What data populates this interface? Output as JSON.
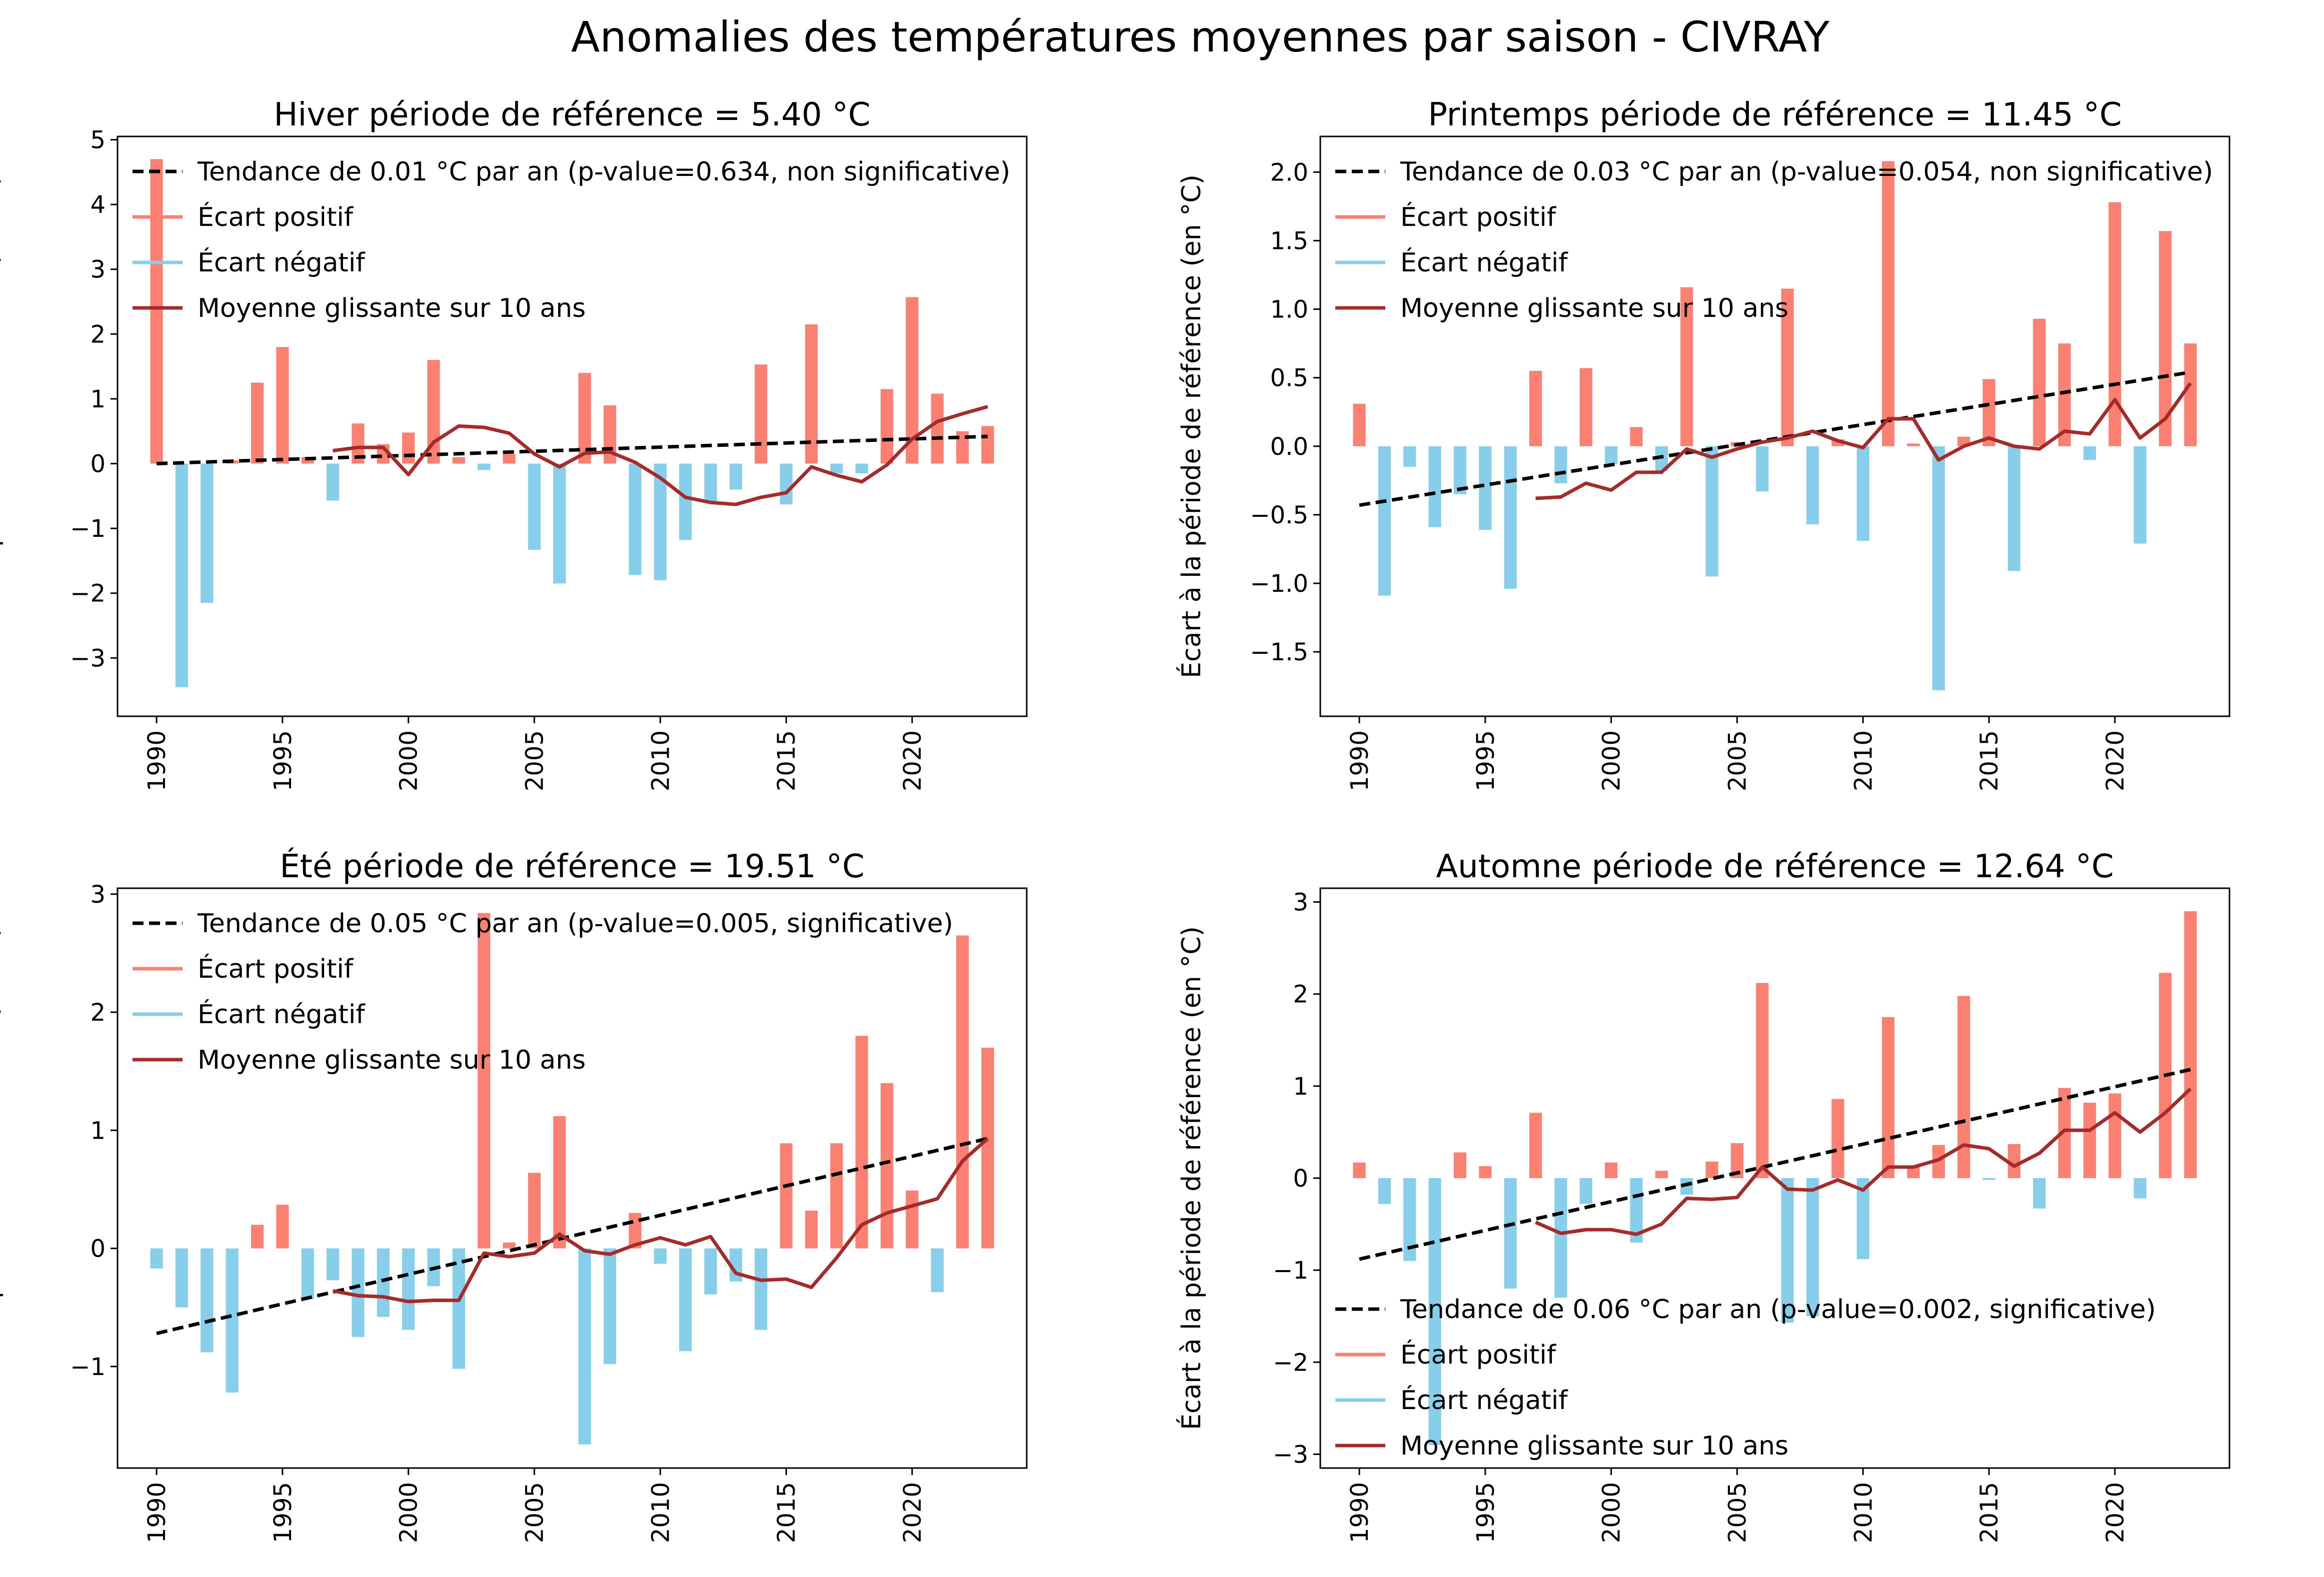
{
  "suptitle": "Anomalies des températures moyennes par saison - CIVRAY",
  "colors": {
    "positive": "#fa8072",
    "negative": "#87ceeb",
    "rolling": "#a52a2a",
    "trend": "#000000"
  },
  "chart_data": [
    {
      "type": "bar",
      "title": "Hiver période de référence = 5.40 °C",
      "ylabel": "Écart à la période de référence (en °C)",
      "xlabel": "",
      "x_ticks": [
        1990,
        1995,
        2000,
        2005,
        2010,
        2015,
        2020
      ],
      "y_ticks": [
        -3,
        -2,
        -1,
        0,
        1,
        2,
        3,
        4,
        5
      ],
      "y_tick_labels": [
        "−3",
        "−2",
        "−1",
        "0",
        "1",
        "2",
        "3",
        "4",
        "5"
      ],
      "ylim": [
        -3.9,
        5.05
      ],
      "legend_position": "upper-left",
      "legend": {
        "trend": "Tendance de 0.01 °C par an (p-value=0.634, non significative)",
        "positive": "Écart positif",
        "negative": "Écart négatif",
        "rolling": "Moyenne glissante sur 10 ans"
      },
      "x": [
        1990,
        1991,
        1992,
        1993,
        1994,
        1995,
        1996,
        1997,
        1998,
        1999,
        2000,
        2001,
        2002,
        2003,
        2004,
        2005,
        2006,
        2007,
        2008,
        2009,
        2010,
        2011,
        2012,
        2013,
        2014,
        2015,
        2016,
        2017,
        2018,
        2019,
        2020,
        2021,
        2022,
        2023
      ],
      "values": [
        4.7,
        -3.45,
        -2.15,
        0.05,
        1.25,
        1.8,
        0.1,
        -0.57,
        0.62,
        0.3,
        0.48,
        1.6,
        0.1,
        -0.1,
        0.15,
        -1.33,
        -1.85,
        1.4,
        0.9,
        -1.72,
        -1.8,
        -1.18,
        -0.6,
        -0.4,
        1.53,
        -0.63,
        2.15,
        -0.15,
        -0.15,
        1.15,
        2.57,
        1.08,
        0.5,
        0.58
      ],
      "rolling_mean": {
        "x": [
          1997,
          1998,
          1999,
          2000,
          2001,
          2002,
          2003,
          2004,
          2005,
          2006,
          2007,
          2008,
          2009,
          2010,
          2011,
          2012,
          2013,
          2014,
          2015,
          2016,
          2017,
          2018,
          2019,
          2020,
          2021,
          2022,
          2023
        ],
        "values": [
          0.2,
          0.25,
          0.25,
          -0.17,
          0.33,
          0.58,
          0.56,
          0.47,
          0.15,
          -0.05,
          0.16,
          0.18,
          0.02,
          -0.22,
          -0.52,
          -0.6,
          -0.63,
          -0.52,
          -0.45,
          -0.05,
          -0.18,
          -0.28,
          -0.02,
          0.38,
          0.65,
          0.77,
          0.88
        ]
      },
      "trend": {
        "x": [
          1990,
          2023
        ],
        "values": [
          0.0,
          0.42
        ]
      }
    },
    {
      "type": "bar",
      "title": "Printemps période de référence = 11.45 °C",
      "ylabel": "Écart à la période de référence (en °C)",
      "xlabel": "",
      "x_ticks": [
        1990,
        1995,
        2000,
        2005,
        2010,
        2015,
        2020
      ],
      "y_ticks": [
        -1.5,
        -1.0,
        -0.5,
        0.0,
        0.5,
        1.0,
        1.5,
        2.0
      ],
      "y_tick_labels": [
        "−1.5",
        "−1.0",
        "−0.5",
        "0.0",
        "0.5",
        "1.0",
        "1.5",
        "2.0"
      ],
      "ylim": [
        -1.97,
        2.26
      ],
      "legend_position": "upper-left",
      "legend": {
        "trend": "Tendance de 0.03 °C par an (p-value=0.054, non significative)",
        "positive": "Écart positif",
        "negative": "Écart négatif",
        "rolling": "Moyenne glissante sur 10 ans"
      },
      "x": [
        1990,
        1991,
        1992,
        1993,
        1994,
        1995,
        1996,
        1997,
        1998,
        1999,
        2000,
        2001,
        2002,
        2003,
        2004,
        2005,
        2006,
        2007,
        2008,
        2009,
        2010,
        2011,
        2012,
        2013,
        2014,
        2015,
        2016,
        2017,
        2018,
        2019,
        2020,
        2021,
        2022,
        2023
      ],
      "values": [
        0.31,
        -1.09,
        -0.15,
        -0.59,
        -0.35,
        -0.61,
        -1.04,
        0.55,
        -0.27,
        0.57,
        -0.13,
        0.14,
        -0.18,
        1.16,
        -0.95,
        0.03,
        -0.33,
        1.15,
        -0.57,
        0.05,
        -0.69,
        2.08,
        0.02,
        -1.78,
        0.07,
        0.49,
        -0.91,
        0.93,
        0.75,
        -0.1,
        1.78,
        -0.71,
        1.57,
        0.75
      ],
      "rolling_mean": {
        "x": [
          1997,
          1998,
          1999,
          2000,
          2001,
          2002,
          2003,
          2004,
          2005,
          2006,
          2007,
          2008,
          2009,
          2010,
          2011,
          2012,
          2013,
          2014,
          2015,
          2016,
          2017,
          2018,
          2019,
          2020,
          2021,
          2022,
          2023
        ],
        "values": [
          -0.38,
          -0.37,
          -0.27,
          -0.32,
          -0.19,
          -0.19,
          -0.02,
          -0.08,
          -0.02,
          0.03,
          0.06,
          0.11,
          0.04,
          -0.01,
          0.2,
          0.2,
          -0.1,
          0.0,
          0.06,
          0.0,
          -0.02,
          0.11,
          0.09,
          0.34,
          0.06,
          0.2,
          0.46
        ]
      },
      "trend": {
        "x": [
          1990,
          2023
        ],
        "values": [
          -0.43,
          0.54
        ]
      }
    },
    {
      "type": "bar",
      "title": "Été période de référence = 19.51 °C",
      "ylabel": "Écart à la période de référence (en °C)",
      "xlabel": "",
      "x_ticks": [
        1990,
        1995,
        2000,
        2005,
        2010,
        2015,
        2020
      ],
      "y_ticks": [
        -1,
        0,
        1,
        2,
        3
      ],
      "y_tick_labels": [
        "−1",
        "0",
        "1",
        "2",
        "3"
      ],
      "ylim": [
        -1.86,
        3.05
      ],
      "legend_position": "upper-left",
      "legend": {
        "trend": "Tendance de 0.05 °C par an (p-value=0.005, significative)",
        "positive": "Écart positif",
        "negative": "Écart négatif",
        "rolling": "Moyenne glissante sur 10 ans"
      },
      "x": [
        1990,
        1991,
        1992,
        1993,
        1994,
        1995,
        1996,
        1997,
        1998,
        1999,
        2000,
        2001,
        2002,
        2003,
        2004,
        2005,
        2006,
        2007,
        2008,
        2009,
        2010,
        2011,
        2012,
        2013,
        2014,
        2015,
        2016,
        2017,
        2018,
        2019,
        2020,
        2021,
        2022,
        2023
      ],
      "values": [
        -0.17,
        -0.5,
        -0.88,
        -1.22,
        0.2,
        0.37,
        -0.43,
        -0.27,
        -0.75,
        -0.58,
        -0.69,
        -0.32,
        -1.02,
        2.84,
        0.05,
        0.64,
        1.12,
        -1.66,
        -0.98,
        0.3,
        -0.13,
        -0.87,
        -0.39,
        -0.28,
        -0.69,
        0.89,
        0.32,
        0.89,
        1.8,
        1.4,
        0.49,
        -0.37,
        2.65,
        1.7
      ],
      "rolling_mean": {
        "x": [
          1997,
          1998,
          1999,
          2000,
          2001,
          2002,
          2003,
          2004,
          2005,
          2006,
          2007,
          2008,
          2009,
          2010,
          2011,
          2012,
          2013,
          2014,
          2015,
          2016,
          2017,
          2018,
          2019,
          2020,
          2021,
          2022,
          2023
        ],
        "values": [
          -0.36,
          -0.4,
          -0.41,
          -0.45,
          -0.44,
          -0.44,
          -0.04,
          -0.07,
          -0.04,
          0.12,
          -0.02,
          -0.05,
          0.03,
          0.09,
          0.03,
          0.1,
          -0.21,
          -0.27,
          -0.26,
          -0.33,
          -0.08,
          0.2,
          0.3,
          0.36,
          0.42,
          0.74,
          0.93
        ]
      },
      "trend": {
        "x": [
          1990,
          2023
        ],
        "values": [
          -0.72,
          0.93
        ]
      }
    },
    {
      "type": "bar",
      "title": "Automne période de référence = 12.64 °C",
      "ylabel": "Écart à la période de référence (en °C)",
      "xlabel": "",
      "x_ticks": [
        1990,
        1995,
        2000,
        2005,
        2010,
        2015,
        2020
      ],
      "y_ticks": [
        -3,
        -2,
        -1,
        0,
        1,
        2,
        3
      ],
      "y_tick_labels": [
        "−3",
        "−2",
        "−1",
        "0",
        "1",
        "2",
        "3"
      ],
      "ylim": [
        -3.15,
        3.15
      ],
      "legend_position": "lower-left",
      "legend": {
        "trend": "Tendance de 0.06 °C par an (p-value=0.002, significative)",
        "positive": "Écart positif",
        "negative": "Écart négatif",
        "rolling": "Moyenne glissante sur 10 ans"
      },
      "x": [
        1990,
        1991,
        1992,
        1993,
        1994,
        1995,
        1996,
        1997,
        1998,
        1999,
        2000,
        2001,
        2002,
        2003,
        2004,
        2005,
        2006,
        2007,
        2008,
        2009,
        2010,
        2011,
        2012,
        2013,
        2014,
        2015,
        2016,
        2017,
        2018,
        2019,
        2020,
        2021,
        2022,
        2023
      ],
      "values": [
        0.17,
        -0.28,
        -0.9,
        -2.9,
        0.28,
        0.13,
        -1.2,
        0.71,
        -1.3,
        -0.28,
        0.17,
        -0.7,
        0.08,
        -0.18,
        0.18,
        0.38,
        2.12,
        -1.57,
        -1.5,
        0.86,
        -0.88,
        1.75,
        0.12,
        0.36,
        1.98,
        -0.02,
        0.37,
        -0.33,
        0.98,
        0.82,
        0.92,
        -0.22,
        2.23,
        2.9
      ],
      "rolling_mean": {
        "x": [
          1997,
          1998,
          1999,
          2000,
          2001,
          2002,
          2003,
          2004,
          2005,
          2006,
          2007,
          2008,
          2009,
          2010,
          2011,
          2012,
          2013,
          2014,
          2015,
          2016,
          2017,
          2018,
          2019,
          2020,
          2021,
          2022,
          2023
        ],
        "values": [
          -0.48,
          -0.6,
          -0.56,
          -0.56,
          -0.61,
          -0.5,
          -0.22,
          -0.23,
          -0.21,
          0.12,
          -0.12,
          -0.13,
          -0.02,
          -0.13,
          0.12,
          0.12,
          0.2,
          0.36,
          0.32,
          0.13,
          0.27,
          0.52,
          0.52,
          0.71,
          0.5,
          0.71,
          0.97
        ]
      },
      "trend": {
        "x": [
          1990,
          2023
        ],
        "values": [
          -0.88,
          1.18
        ]
      }
    }
  ]
}
